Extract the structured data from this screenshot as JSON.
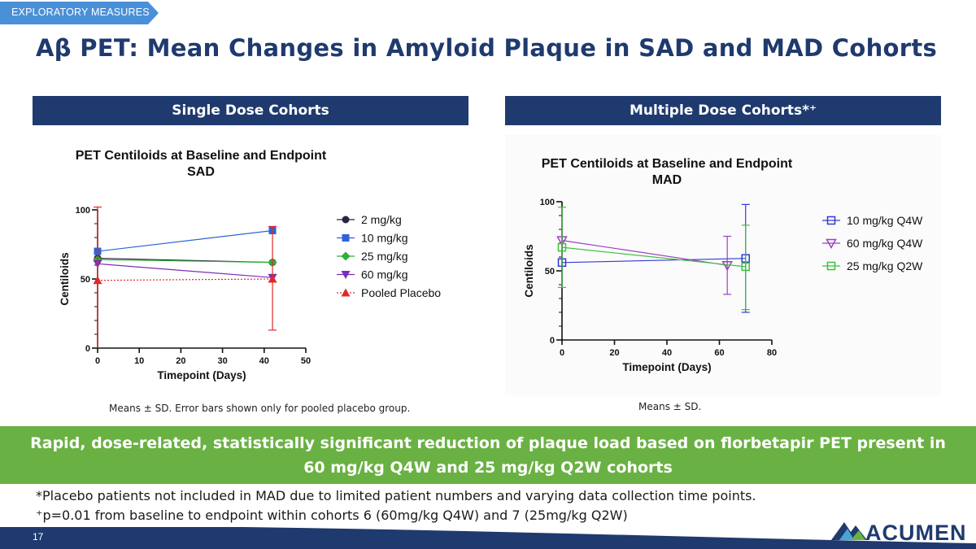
{
  "section_tag": "EXPLORATORY MEASURES",
  "title": "Aβ PET: Mean Changes in Amyloid Plaque in SAD and MAD Cohorts",
  "left_panel": {
    "header": "Single Dose Cohorts",
    "note": "Means ± SD.  Error bars shown only for pooled placebo group."
  },
  "right_panel": {
    "header": "Multiple Dose Cohorts*⁺",
    "note": "Means ± SD."
  },
  "banner": {
    "line1": "Rapid, dose-related, statistically significant reduction of plaque load based on florbetapir PET present in",
    "line2": "60 mg/kg Q4W and 25 mg/kg Q2W cohorts"
  },
  "footnotes": {
    "line1": "*Placebo patients not included in MAD due to limited patient numbers and varying data collection time points.",
    "line2": "⁺p=0.01 from baseline to endpoint within cohorts 6 (60mg/kg Q4W) and 7 (25mg/kg Q2W)"
  },
  "slide_number": "17",
  "logo_text": "ACUMEN",
  "colors": {
    "navy": "#1f3a6e",
    "green": "#6ab143",
    "tag": "#4a90d9"
  },
  "chart_data": [
    {
      "type": "line",
      "title": "PET Centiloids at  Baseline and  Endpoint",
      "subtitle": "SAD",
      "xlabel": "Timepoint (Days)",
      "ylabel": "Centiloids",
      "xlim": [
        0,
        50
      ],
      "ylim": [
        0,
        100
      ],
      "xticks": [
        0,
        10,
        20,
        30,
        40,
        50
      ],
      "yticks": [
        0,
        50,
        100
      ],
      "legend_position": "right",
      "series": [
        {
          "name": "2 mg/kg",
          "color": "#2b2340",
          "marker": "circle",
          "dash": false,
          "points": [
            [
              0,
              65
            ],
            [
              42,
              62
            ]
          ]
        },
        {
          "name": "10 mg/kg",
          "color": "#2f63d6",
          "marker": "square",
          "dash": false,
          "points": [
            [
              0,
              70
            ],
            [
              42,
              85
            ]
          ]
        },
        {
          "name": "25 mg/kg",
          "color": "#2fae3a",
          "marker": "diamond",
          "dash": false,
          "points": [
            [
              0,
              64
            ],
            [
              42,
              62
            ]
          ]
        },
        {
          "name": "60 mg/kg",
          "color": "#7a2fb5",
          "marker": "triangle-down",
          "dash": false,
          "points": [
            [
              0,
              61
            ],
            [
              42,
              51
            ]
          ]
        },
        {
          "name": "Pooled Placebo",
          "color": "#e02a2a",
          "marker": "triangle-up",
          "dash": true,
          "points": [
            [
              0,
              49
            ],
            [
              42,
              50
            ]
          ],
          "errors": [
            [
              -10,
              102
            ],
            [
              13,
              88
            ]
          ]
        }
      ]
    },
    {
      "type": "line",
      "title": "PET Centiloids at Baseline and Endpoint",
      "subtitle": "MAD",
      "xlabel": "Timepoint (Days)",
      "ylabel": "Centiloids",
      "xlim": [
        0,
        80
      ],
      "ylim": [
        0,
        100
      ],
      "xticks": [
        0,
        20,
        40,
        60,
        80
      ],
      "yticks": [
        0,
        50,
        100
      ],
      "legend_position": "right",
      "series": [
        {
          "name": "10 mg/kg Q4W",
          "color": "#2f3bd6",
          "marker": "square-open",
          "dash": false,
          "points": [
            [
              0,
              56
            ],
            [
              70,
              59
            ]
          ],
          "errors": [
            [
              0,
              0
            ],
            [
              20,
              98
            ]
          ]
        },
        {
          "name": "60 mg/kg Q4W",
          "color": "#9b3fc4",
          "marker": "triangle-down-open",
          "dash": false,
          "points": [
            [
              0,
              72
            ],
            [
              63,
              54
            ]
          ],
          "errors": [
            [
              0,
              0
            ],
            [
              33,
              75
            ]
          ]
        },
        {
          "name": "25 mg/kg Q2W",
          "color": "#3fbf3f",
          "marker": "square-open",
          "dash": false,
          "points": [
            [
              0,
              67
            ],
            [
              70,
              53
            ]
          ],
          "errors": [
            [
              38,
              96
            ],
            [
              22,
              83
            ]
          ]
        }
      ]
    }
  ]
}
